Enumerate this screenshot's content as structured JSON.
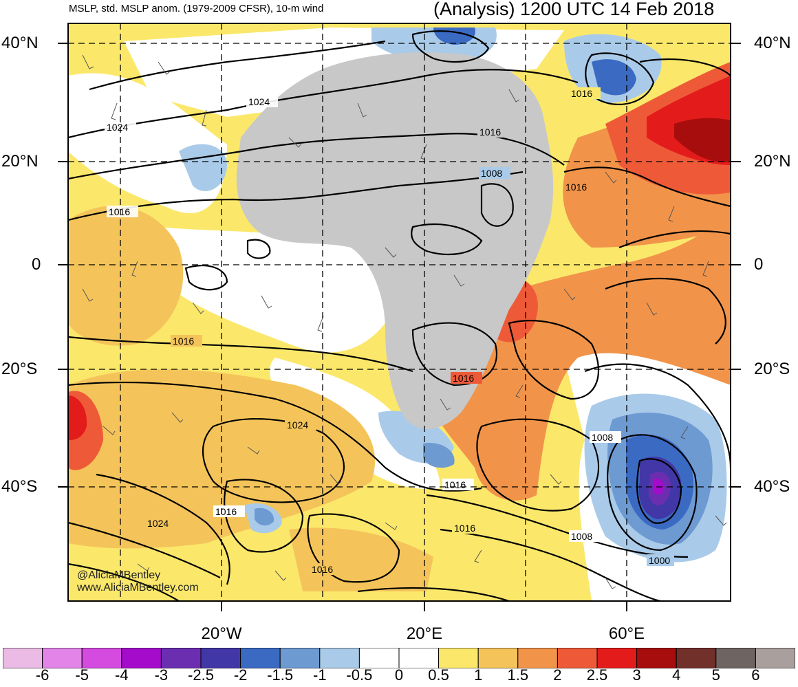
{
  "header": {
    "left": "MSLP, std. MSLP anom. (1979-2009 CFSR), 10-m wind",
    "right": "(Analysis) 1200 UTC 14 Feb 2018"
  },
  "lat_labels": [
    "40°N",
    "20°N",
    "0",
    "20°S",
    "40°S"
  ],
  "lon_labels": [
    "20°W",
    "20°E",
    "60°E"
  ],
  "contour_labels": [
    "1024",
    "1024",
    "1016",
    "1016",
    "1008",
    "1016",
    "1016",
    "1016",
    "1016",
    "1024",
    "1024",
    "1016",
    "1016",
    "1016",
    "1016",
    "1008",
    "1000",
    "1008"
  ],
  "credit": [
    "@AliciaMBentley",
    "www.AliciaMBentley.com"
  ],
  "colorbar": {
    "colors": [
      "#ebbbe6",
      "#e384e8",
      "#d54be0",
      "#a40bcb",
      "#6b2eb1",
      "#4237a6",
      "#3b6ac3",
      "#6e9ad2",
      "#a9cbe9",
      "#ffffff",
      "#ffffff",
      "#fbe86b",
      "#f4c45b",
      "#f1944a",
      "#ee5a38",
      "#e31b1b",
      "#a80d0d",
      "#72302b",
      "#6e6462",
      "#a9a09e"
    ],
    "ticks": [
      "-6",
      "-5",
      "-4",
      "-3",
      "-2.5",
      "-2",
      "-1.5",
      "-1",
      "-0.5",
      "0",
      "0.5",
      "1",
      "1.5",
      "2",
      "2.5",
      "3",
      "4",
      "5",
      "6"
    ]
  }
}
